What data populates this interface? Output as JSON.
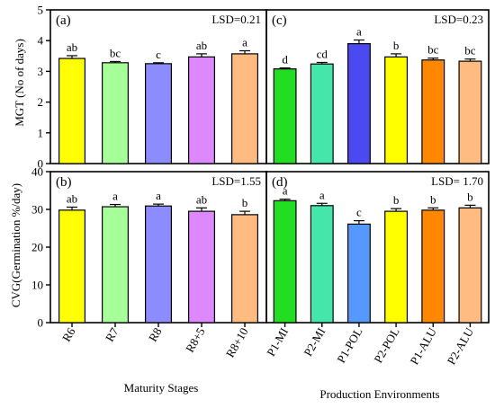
{
  "figure": {
    "ylabel_top": "MGT (No of days)",
    "ylabel_bottom": "CVG(Germination %/day)",
    "xlabel_left": "Maturity Stages",
    "xlabel_right": "Production Environments"
  },
  "chart_data": [
    {
      "type": "bar",
      "panel": "(a)",
      "lsd": "LSD=0.21",
      "categories": [
        "R6",
        "R7",
        "R8",
        "R8+5",
        "R8+10"
      ],
      "values": [
        3.42,
        3.28,
        3.25,
        3.47,
        3.57
      ],
      "errors": [
        0.09,
        0.04,
        0.03,
        0.1,
        0.1
      ],
      "letters": [
        "ab",
        "bc",
        "c",
        "ab",
        "a"
      ],
      "colors": [
        "#ffff00",
        "#a6ff99",
        "#8c8cff",
        "#dd88ff",
        "#ffbb80"
      ],
      "ylim": [
        0,
        5
      ],
      "yticks": [
        "0",
        "1",
        "2",
        "3",
        "4",
        "5"
      ]
    },
    {
      "type": "bar",
      "panel": "(c)",
      "lsd": "LSD=0.23",
      "categories": [
        "P1-MI",
        "P2-MI",
        "P1-POL",
        "P2-POL",
        "P1-ALU",
        "P2-ALU"
      ],
      "values": [
        3.08,
        3.24,
        3.9,
        3.47,
        3.37,
        3.33
      ],
      "errors": [
        0.03,
        0.05,
        0.12,
        0.1,
        0.06,
        0.07
      ],
      "letters": [
        "d",
        "cd",
        "a",
        "b",
        "bc",
        "bc"
      ],
      "colors": [
        "#22dd22",
        "#44e6aa",
        "#4a4af0",
        "#ffff00",
        "#ff8800",
        "#ffbb80"
      ],
      "ylim": [
        0,
        5
      ]
    },
    {
      "type": "bar",
      "panel": "(b)",
      "lsd": "LSD=1.55",
      "categories": [
        "R6",
        "R7",
        "R8",
        "R8+5",
        "R8+10"
      ],
      "values": [
        29.8,
        30.7,
        30.9,
        29.5,
        28.6
      ],
      "errors": [
        0.8,
        0.6,
        0.5,
        0.9,
        0.9
      ],
      "letters": [
        "ab",
        "a",
        "a",
        "ab",
        "b"
      ],
      "colors": [
        "#ffff00",
        "#a6ff99",
        "#8c8cff",
        "#dd88ff",
        "#ffbb80"
      ],
      "ylim": [
        0,
        40
      ],
      "yticks": [
        "0",
        "10",
        "20",
        "30",
        "40"
      ]
    },
    {
      "type": "bar",
      "panel": "(d)",
      "lsd": "LSD= 1.70",
      "categories": [
        "P1-MI",
        "P2-MI",
        "P1-POL",
        "P2-POL",
        "P1-ALU",
        "P2-ALU"
      ],
      "values": [
        32.3,
        31.0,
        26.1,
        29.5,
        29.8,
        30.4
      ],
      "errors": [
        0.4,
        0.6,
        0.9,
        0.7,
        0.6,
        0.7
      ],
      "letters": [
        "a",
        "a",
        "c",
        "b",
        "b",
        "b"
      ],
      "colors": [
        "#22dd22",
        "#44e6aa",
        "#5599ff",
        "#ffff00",
        "#ff8800",
        "#ffbb80"
      ],
      "ylim": [
        0,
        40
      ]
    }
  ]
}
